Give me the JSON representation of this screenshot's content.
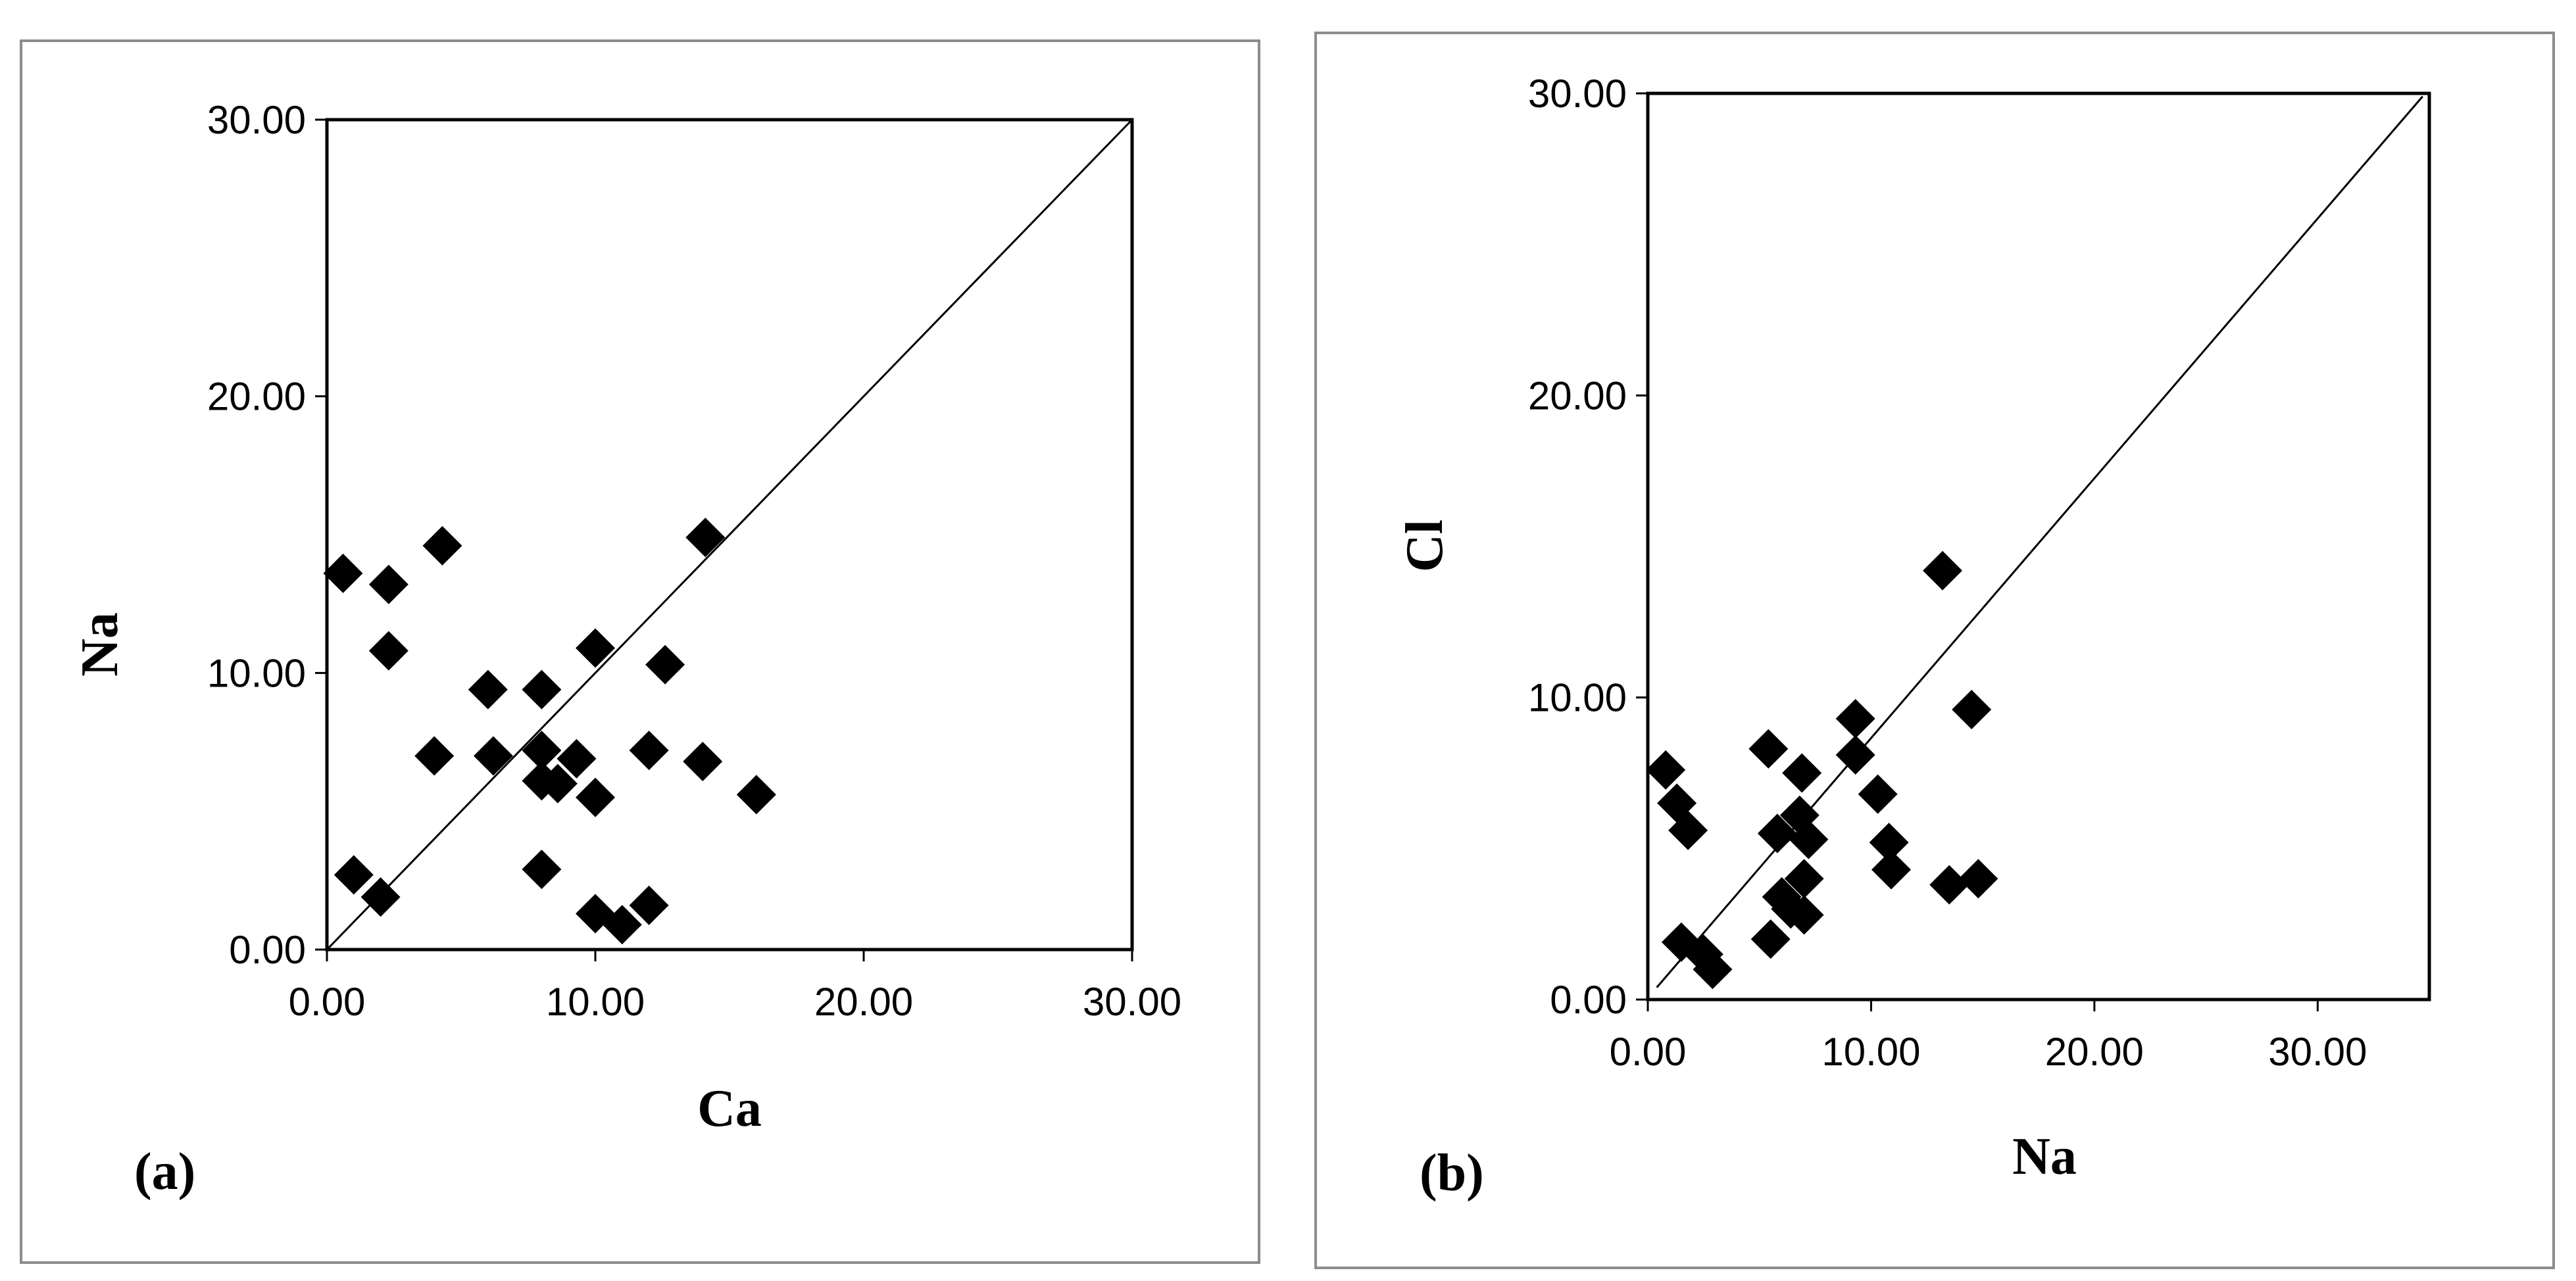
{
  "chart_data": [
    {
      "type": "scatter",
      "panel_label": "(a)",
      "xlabel": "Ca",
      "ylabel": "Na",
      "xlim": [
        0,
        30
      ],
      "ylim": [
        0,
        30
      ],
      "x_ticks": [
        "0.00",
        "10.00",
        "20.00",
        "30.00"
      ],
      "y_ticks": [
        "0.00",
        "10.00",
        "20.00",
        "30.00"
      ],
      "grid": false,
      "marker": "diamond",
      "reference_line": {
        "from": [
          0,
          0
        ],
        "to": [
          30,
          30
        ]
      },
      "points": [
        {
          "x": 0.6,
          "y": 13.6
        },
        {
          "x": 2.3,
          "y": 13.2
        },
        {
          "x": 4.3,
          "y": 14.6
        },
        {
          "x": 14.1,
          "y": 14.9
        },
        {
          "x": 2.3,
          "y": 10.8
        },
        {
          "x": 10.0,
          "y": 10.9
        },
        {
          "x": 12.6,
          "y": 10.3
        },
        {
          "x": 6.0,
          "y": 9.4
        },
        {
          "x": 8.0,
          "y": 9.4
        },
        {
          "x": 4.0,
          "y": 7.0
        },
        {
          "x": 6.2,
          "y": 7.0
        },
        {
          "x": 8.0,
          "y": 7.2
        },
        {
          "x": 9.3,
          "y": 6.9
        },
        {
          "x": 12.0,
          "y": 7.2
        },
        {
          "x": 14.0,
          "y": 6.8
        },
        {
          "x": 8.0,
          "y": 6.1
        },
        {
          "x": 8.6,
          "y": 6.0
        },
        {
          "x": 10.0,
          "y": 5.5
        },
        {
          "x": 16.0,
          "y": 5.6
        },
        {
          "x": 1.0,
          "y": 2.7
        },
        {
          "x": 2.0,
          "y": 1.9
        },
        {
          "x": 8.0,
          "y": 2.9
        },
        {
          "x": 10.0,
          "y": 1.3
        },
        {
          "x": 11.0,
          "y": 0.9
        },
        {
          "x": 12.0,
          "y": 1.6
        }
      ]
    },
    {
      "type": "scatter",
      "panel_label": "(b)",
      "xlabel": "Na",
      "ylabel": "Cl",
      "xlim": [
        0,
        35
      ],
      "ylim": [
        0,
        30
      ],
      "x_ticks": [
        "0.00",
        "10.00",
        "20.00",
        "30.00"
      ],
      "y_ticks": [
        "0.00",
        "10.00",
        "20.00",
        "30.00"
      ],
      "grid": false,
      "marker": "diamond",
      "reference_line": {
        "from": [
          0.4,
          0.4
        ],
        "to": [
          34.7,
          29.9
        ]
      },
      "points": [
        {
          "x": 13.2,
          "y": 14.2
        },
        {
          "x": 9.3,
          "y": 9.3
        },
        {
          "x": 14.5,
          "y": 9.6
        },
        {
          "x": 5.4,
          "y": 8.3
        },
        {
          "x": 9.3,
          "y": 8.1
        },
        {
          "x": 0.8,
          "y": 7.6
        },
        {
          "x": 6.9,
          "y": 7.5
        },
        {
          "x": 1.3,
          "y": 6.5
        },
        {
          "x": 10.3,
          "y": 6.8
        },
        {
          "x": 6.8,
          "y": 6.1
        },
        {
          "x": 1.8,
          "y": 5.6
        },
        {
          "x": 5.8,
          "y": 5.5
        },
        {
          "x": 7.2,
          "y": 5.3
        },
        {
          "x": 10.8,
          "y": 5.2
        },
        {
          "x": 10.9,
          "y": 4.3
        },
        {
          "x": 7.0,
          "y": 4.0
        },
        {
          "x": 13.5,
          "y": 3.8
        },
        {
          "x": 14.8,
          "y": 4.0
        },
        {
          "x": 6.0,
          "y": 3.4
        },
        {
          "x": 6.4,
          "y": 3.0
        },
        {
          "x": 7.0,
          "y": 2.8
        },
        {
          "x": 1.5,
          "y": 1.9
        },
        {
          "x": 5.5,
          "y": 2.0
        },
        {
          "x": 2.5,
          "y": 1.5
        },
        {
          "x": 2.9,
          "y": 1.0
        }
      ]
    }
  ]
}
